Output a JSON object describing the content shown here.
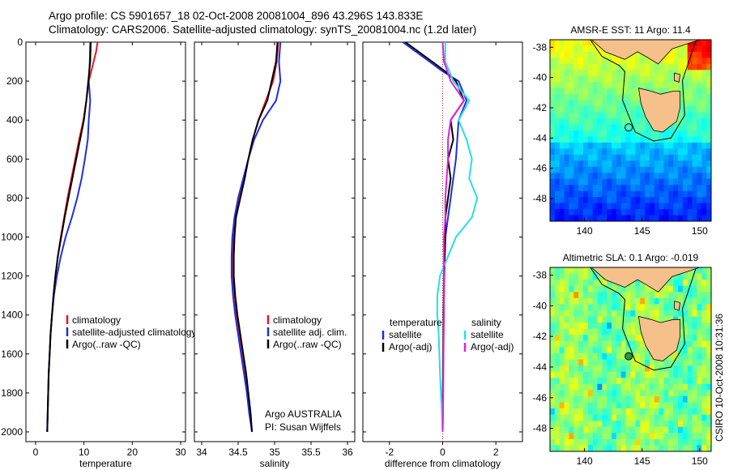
{
  "header": {
    "line1": "Argo profile: CS 5901657_18 02-Oct-2008 20081004_896 43.296S 143.833E",
    "line2": "Climatology: CARS2006. Satellite-adjusted climatology: synTS_20081004.nc (1.2d later)"
  },
  "colors": {
    "climatology": "#e41a1c",
    "satellite": "#1f2ee0",
    "argo": "#000000",
    "cyan": "#22e0e8",
    "magenta": "#e020d8",
    "land": "#f5c08a"
  },
  "chart_data": [
    {
      "type": "line",
      "xlabel": "temperature",
      "ylabel": "",
      "xlim": [
        -2,
        31
      ],
      "ylim": [
        2050,
        0
      ],
      "xticks": [
        "0",
        "10",
        "20",
        "30"
      ],
      "yticks": [
        "0",
        "200",
        "400",
        "600",
        "800",
        "1000",
        "1200",
        "1400",
        "1600",
        "1800",
        "2000"
      ],
      "legend": [
        "climatology",
        "satellite-adjusted climatology",
        "Argo(..raw -QC)"
      ],
      "series": [
        {
          "name": "climatology",
          "color_key": "climatology",
          "points": [
            [
              12.8,
              0
            ],
            [
              12.5,
              50
            ],
            [
              12.0,
              100
            ],
            [
              11.0,
              200
            ],
            [
              10.5,
              300
            ],
            [
              9.9,
              400
            ],
            [
              9.0,
              500
            ],
            [
              8.2,
              600
            ],
            [
              7.4,
              700
            ],
            [
              6.6,
              800
            ],
            [
              5.9,
              900
            ],
            [
              5.2,
              1000
            ],
            [
              4.6,
              1100
            ],
            [
              4.1,
              1200
            ],
            [
              3.7,
              1300
            ],
            [
              3.4,
              1400
            ],
            [
              3.1,
              1500
            ],
            [
              2.9,
              1600
            ],
            [
              2.7,
              1700
            ],
            [
              2.6,
              1800
            ],
            [
              2.5,
              1900
            ],
            [
              2.4,
              2000
            ]
          ]
        },
        {
          "name": "satellite-adjusted climatology",
          "color_key": "satellite",
          "points": [
            [
              11.3,
              0
            ],
            [
              11.2,
              100
            ],
            [
              11.0,
              200
            ],
            [
              11.3,
              300
            ],
            [
              11.0,
              400
            ],
            [
              10.8,
              500
            ],
            [
              10.2,
              600
            ],
            [
              9.5,
              700
            ],
            [
              8.6,
              800
            ],
            [
              7.5,
              900
            ],
            [
              6.2,
              1000
            ],
            [
              5.2,
              1100
            ],
            [
              4.4,
              1200
            ],
            [
              3.8,
              1300
            ],
            [
              3.4,
              1400
            ],
            [
              3.1,
              1500
            ],
            [
              2.9,
              1600
            ],
            [
              2.7,
              1700
            ],
            [
              2.6,
              1800
            ],
            [
              2.5,
              1900
            ],
            [
              2.4,
              2000
            ]
          ]
        },
        {
          "name": "Argo(..raw -QC)",
          "color_key": "argo",
          "points": [
            [
              11.4,
              0
            ],
            [
              11.3,
              100
            ],
            [
              10.9,
              200
            ],
            [
              10.5,
              300
            ],
            [
              10.0,
              400
            ],
            [
              9.2,
              500
            ],
            [
              8.4,
              600
            ],
            [
              7.6,
              700
            ],
            [
              6.8,
              800
            ],
            [
              6.0,
              900
            ],
            [
              5.3,
              1000
            ],
            [
              4.6,
              1100
            ],
            [
              4.1,
              1200
            ],
            [
              3.7,
              1300
            ],
            [
              3.4,
              1400
            ],
            [
              3.1,
              1500
            ],
            [
              2.9,
              1600
            ],
            [
              2.7,
              1700
            ],
            [
              2.6,
              1800
            ],
            [
              2.5,
              1900
            ],
            [
              2.4,
              2000
            ]
          ]
        }
      ]
    },
    {
      "type": "line",
      "xlabel": "salinity",
      "xlim": [
        33.9,
        36.1
      ],
      "ylim": [
        2050,
        0
      ],
      "xticks": [
        "34",
        "34.5",
        "35",
        "35.5",
        "36"
      ],
      "legend": [
        "climatology",
        "satellite adj. clim.",
        "Argo(..raw -QC)"
      ],
      "annotation": [
        "Argo AUSTRALIA",
        "PI: Susan Wijffels"
      ],
      "series": [
        {
          "name": "climatology",
          "color_key": "climatology",
          "points": [
            [
              35.05,
              0
            ],
            [
              35.03,
              100
            ],
            [
              34.98,
              200
            ],
            [
              34.88,
              300
            ],
            [
              34.78,
              400
            ],
            [
              34.7,
              500
            ],
            [
              34.64,
              600
            ],
            [
              34.58,
              700
            ],
            [
              34.52,
              800
            ],
            [
              34.47,
              900
            ],
            [
              34.44,
              1000
            ],
            [
              34.43,
              1100
            ],
            [
              34.43,
              1200
            ],
            [
              34.45,
              1300
            ],
            [
              34.48,
              1400
            ],
            [
              34.52,
              1500
            ],
            [
              34.56,
              1600
            ],
            [
              34.6,
              1700
            ],
            [
              34.63,
              1800
            ],
            [
              34.66,
              1900
            ],
            [
              34.69,
              2000
            ]
          ]
        },
        {
          "name": "satellite adj. clim.",
          "color_key": "satellite",
          "points": [
            [
              35.08,
              0
            ],
            [
              35.06,
              100
            ],
            [
              35.08,
              200
            ],
            [
              35.02,
              300
            ],
            [
              34.84,
              400
            ],
            [
              34.72,
              500
            ],
            [
              34.64,
              600
            ],
            [
              34.57,
              700
            ],
            [
              34.5,
              800
            ],
            [
              34.45,
              900
            ],
            [
              34.42,
              1000
            ],
            [
              34.41,
              1100
            ],
            [
              34.41,
              1200
            ],
            [
              34.43,
              1300
            ],
            [
              34.46,
              1400
            ],
            [
              34.5,
              1500
            ],
            [
              34.54,
              1600
            ],
            [
              34.58,
              1700
            ],
            [
              34.62,
              1800
            ],
            [
              34.65,
              1900
            ],
            [
              34.69,
              2000
            ]
          ]
        },
        {
          "name": "Argo(..raw -QC)",
          "color_key": "argo",
          "points": [
            [
              35.04,
              0
            ],
            [
              35.02,
              100
            ],
            [
              34.96,
              200
            ],
            [
              34.9,
              300
            ],
            [
              34.78,
              400
            ],
            [
              34.7,
              500
            ],
            [
              34.64,
              600
            ],
            [
              34.59,
              700
            ],
            [
              34.53,
              800
            ],
            [
              34.47,
              900
            ],
            [
              34.45,
              1000
            ],
            [
              34.44,
              1100
            ],
            [
              34.44,
              1200
            ],
            [
              34.46,
              1300
            ],
            [
              34.49,
              1400
            ],
            [
              34.53,
              1500
            ],
            [
              34.57,
              1600
            ],
            [
              34.61,
              1700
            ],
            [
              34.64,
              1800
            ],
            [
              34.67,
              1900
            ],
            [
              34.69,
              2000
            ]
          ]
        }
      ]
    },
    {
      "type": "line",
      "xlabel": "difference from climatology",
      "xlim": [
        -3,
        3
      ],
      "ylim": [
        2050,
        0
      ],
      "xticks": [
        "-2",
        "0",
        "2"
      ],
      "legend_left_title": "temperature",
      "legend_right_title": "salinity",
      "legend_left": [
        "satellite",
        "Argo(-adj)"
      ],
      "legend_right": [
        "satellite",
        "Argo(-adj)"
      ],
      "series": [
        {
          "name": "temperature satellite",
          "color_key": "satellite",
          "points": [
            [
              -1.5,
              0
            ],
            [
              -1.0,
              50
            ],
            [
              -0.5,
              100
            ],
            [
              0.0,
              150
            ],
            [
              0.6,
              200
            ],
            [
              0.9,
              300
            ],
            [
              0.6,
              400
            ],
            [
              0.5,
              600
            ],
            [
              0.4,
              700
            ],
            [
              0.3,
              800
            ],
            [
              0.2,
              900
            ],
            [
              0.1,
              1000
            ],
            [
              0.06,
              1200
            ],
            [
              0.04,
              1400
            ],
            [
              0.02,
              1600
            ],
            [
              0.01,
              1800
            ],
            [
              0.0,
              2000
            ]
          ]
        },
        {
          "name": "temperature Argo(-adj)",
          "color_key": "argo",
          "points": [
            [
              -1.4,
              0
            ],
            [
              -0.9,
              50
            ],
            [
              -0.4,
              100
            ],
            [
              0.1,
              150
            ],
            [
              0.5,
              200
            ],
            [
              0.8,
              300
            ],
            [
              0.3,
              400
            ],
            [
              0.4,
              500
            ],
            [
              0.2,
              600
            ],
            [
              0.3,
              700
            ],
            [
              0.2,
              800
            ],
            [
              0.1,
              900
            ],
            [
              0.1,
              1000
            ],
            [
              0.05,
              1200
            ],
            [
              0.03,
              1400
            ],
            [
              0.02,
              1600
            ],
            [
              0.01,
              1800
            ],
            [
              0.0,
              2000
            ]
          ]
        },
        {
          "name": "salinity satellite",
          "color_key": "cyan",
          "points": [
            [
              0.1,
              0
            ],
            [
              0.1,
              100
            ],
            [
              0.4,
              200
            ],
            [
              1.0,
              300
            ],
            [
              0.6,
              400
            ],
            [
              0.9,
              500
            ],
            [
              1.1,
              600
            ],
            [
              1.0,
              700
            ],
            [
              1.3,
              800
            ],
            [
              1.1,
              900
            ],
            [
              0.5,
              1000
            ],
            [
              0.2,
              1100
            ],
            [
              -0.1,
              1200
            ],
            [
              -0.2,
              1300
            ],
            [
              -0.2,
              1400
            ],
            [
              -0.15,
              1500
            ],
            [
              -0.1,
              1700
            ],
            [
              -0.05,
              1850
            ],
            [
              0.0,
              2000
            ]
          ]
        },
        {
          "name": "salinity Argo(-adj)",
          "color_key": "magenta",
          "points": [
            [
              0.0,
              0
            ],
            [
              0.05,
              100
            ],
            [
              0.3,
              200
            ],
            [
              0.8,
              300
            ],
            [
              0.3,
              400
            ],
            [
              0.2,
              500
            ],
            [
              0.2,
              600
            ],
            [
              0.15,
              700
            ],
            [
              0.1,
              800
            ],
            [
              0.1,
              900
            ],
            [
              0.05,
              1000
            ],
            [
              0.05,
              1200
            ],
            [
              0.05,
              1400
            ],
            [
              0.03,
              1600
            ],
            [
              0.02,
              1800
            ],
            [
              0.0,
              2000
            ]
          ]
        }
      ]
    }
  ],
  "maps": [
    {
      "title": "AMSR-E SST: 11 Argo: 11.4",
      "kind": "sst",
      "xlim": [
        137,
        151
      ],
      "ylim": [
        -49.5,
        -37.5
      ],
      "xticks": [
        "140",
        "145",
        "150"
      ],
      "yticks": [
        "-38",
        "-40",
        "-42",
        "-44",
        "-46",
        "-48"
      ],
      "argo_position": {
        "lon": 143.833,
        "lat": -43.296
      }
    },
    {
      "title": "Altimetric SLA: 0.1 Argo: -0.019",
      "kind": "sla",
      "xlim": [
        137,
        151
      ],
      "ylim": [
        -49.5,
        -37.5
      ],
      "xticks": [
        "140",
        "145",
        "150"
      ],
      "yticks": [
        "-38",
        "-40",
        "-42",
        "-44",
        "-46",
        "-48"
      ],
      "argo_position": {
        "lon": 143.833,
        "lat": -43.296
      }
    }
  ],
  "footer_vertical": "CSIRO 10-Oct-2008 10:31:36"
}
